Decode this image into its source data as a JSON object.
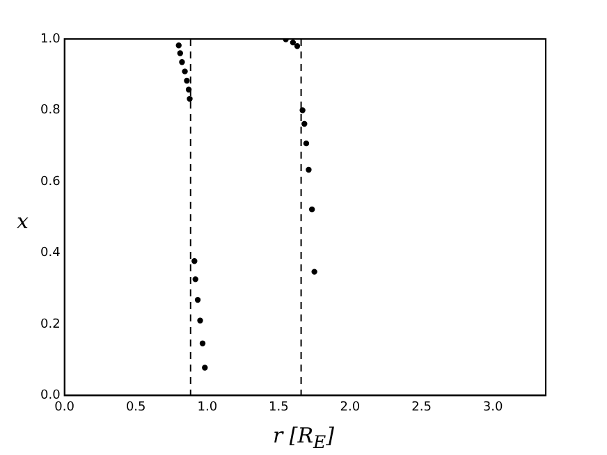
{
  "chart_data": {
    "type": "scatter",
    "xlabel": "r [R$_{E}$]",
    "ylabel": "x",
    "series": [
      {
        "color": "#000000",
        "x": [
          0.8,
          0.81,
          0.823,
          0.843,
          0.857,
          0.87,
          0.877,
          0.91,
          0.917,
          0.933,
          0.95,
          0.967,
          0.983,
          1.55,
          1.6,
          1.63,
          1.667,
          1.68,
          1.693,
          1.71,
          1.733,
          1.75
        ],
        "values": [
          0.982,
          0.96,
          0.935,
          0.909,
          0.883,
          0.858,
          0.832,
          0.377,
          0.326,
          0.268,
          0.21,
          0.146,
          0.078,
          0.999,
          0.99,
          0.98,
          0.8,
          0.762,
          0.707,
          0.633,
          0.522,
          0.347
        ]
      }
    ],
    "xlim": [
      0,
      3.37
    ],
    "xticks": [
      {
        "value": 0,
        "label": "0.0"
      },
      {
        "value": 0.5,
        "label": "0.5"
      },
      {
        "value": 1,
        "label": "1.0"
      },
      {
        "value": 1.5,
        "label": "1.5"
      },
      {
        "value": 2,
        "label": "2.0"
      },
      {
        "value": 2.5,
        "label": "2.5"
      },
      {
        "value": 3,
        "label": "3.0"
      }
    ],
    "ylim": [
      0,
      1
    ],
    "yticks": [
      {
        "value": 0,
        "label": "0.0"
      },
      {
        "value": 0.2,
        "label": "0.2"
      },
      {
        "value": 0.4,
        "label": "0.4"
      },
      {
        "value": 0.6,
        "label": "0.6"
      },
      {
        "value": 0.8,
        "label": "0.8"
      },
      {
        "value": 1,
        "label": "1.0"
      }
    ],
    "ref_lines": [
      {
        "axis": "x",
        "value": 0.883,
        "color": "#000000",
        "line_style": "dashed"
      },
      {
        "axis": "x",
        "value": 1.657,
        "color": "#000000",
        "line_style": "dashed"
      }
    ],
    "grid": false,
    "legend": false,
    "marker": "circle"
  }
}
